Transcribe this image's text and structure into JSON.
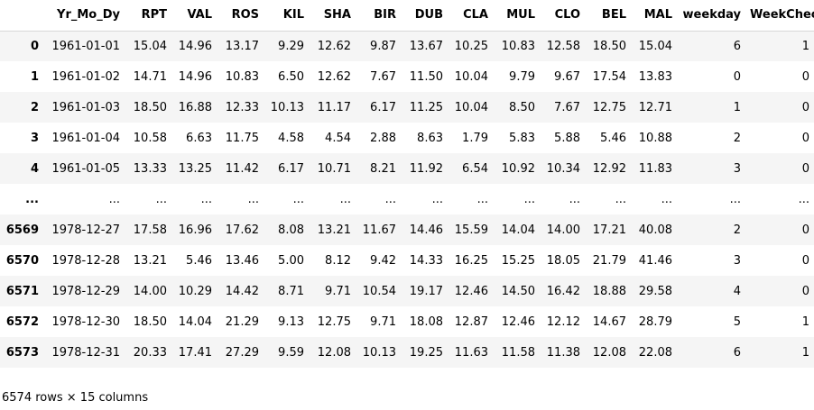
{
  "table": {
    "index_header": "",
    "columns": [
      "Yr_Mo_Dy",
      "RPT",
      "VAL",
      "ROS",
      "KIL",
      "SHA",
      "BIR",
      "DUB",
      "CLA",
      "MUL",
      "CLO",
      "BEL",
      "MAL",
      "weekday",
      "WeekCheck"
    ],
    "rows": [
      {
        "index": "0",
        "cells": [
          "1961-01-01",
          "15.04",
          "14.96",
          "13.17",
          "9.29",
          "12.62",
          "9.87",
          "13.67",
          "10.25",
          "10.83",
          "12.58",
          "18.50",
          "15.04",
          "6",
          "1"
        ]
      },
      {
        "index": "1",
        "cells": [
          "1961-01-02",
          "14.71",
          "14.96",
          "10.83",
          "6.50",
          "12.62",
          "7.67",
          "11.50",
          "10.04",
          "9.79",
          "9.67",
          "17.54",
          "13.83",
          "0",
          "0"
        ]
      },
      {
        "index": "2",
        "cells": [
          "1961-01-03",
          "18.50",
          "16.88",
          "12.33",
          "10.13",
          "11.17",
          "6.17",
          "11.25",
          "10.04",
          "8.50",
          "7.67",
          "12.75",
          "12.71",
          "1",
          "0"
        ]
      },
      {
        "index": "3",
        "cells": [
          "1961-01-04",
          "10.58",
          "6.63",
          "11.75",
          "4.58",
          "4.54",
          "2.88",
          "8.63",
          "1.79",
          "5.83",
          "5.88",
          "5.46",
          "10.88",
          "2",
          "0"
        ]
      },
      {
        "index": "4",
        "cells": [
          "1961-01-05",
          "13.33",
          "13.25",
          "11.42",
          "6.17",
          "10.71",
          "8.21",
          "11.92",
          "6.54",
          "10.92",
          "10.34",
          "12.92",
          "11.83",
          "3",
          "0"
        ]
      },
      {
        "index": "...",
        "cells": [
          "...",
          "...",
          "...",
          "...",
          "...",
          "...",
          "...",
          "...",
          "...",
          "...",
          "...",
          "...",
          "...",
          "...",
          "..."
        ]
      },
      {
        "index": "6569",
        "cells": [
          "1978-12-27",
          "17.58",
          "16.96",
          "17.62",
          "8.08",
          "13.21",
          "11.67",
          "14.46",
          "15.59",
          "14.04",
          "14.00",
          "17.21",
          "40.08",
          "2",
          "0"
        ]
      },
      {
        "index": "6570",
        "cells": [
          "1978-12-28",
          "13.21",
          "5.46",
          "13.46",
          "5.00",
          "8.12",
          "9.42",
          "14.33",
          "16.25",
          "15.25",
          "18.05",
          "21.79",
          "41.46",
          "3",
          "0"
        ]
      },
      {
        "index": "6571",
        "cells": [
          "1978-12-29",
          "14.00",
          "10.29",
          "14.42",
          "8.71",
          "9.71",
          "10.54",
          "19.17",
          "12.46",
          "14.50",
          "16.42",
          "18.88",
          "29.58",
          "4",
          "0"
        ]
      },
      {
        "index": "6572",
        "cells": [
          "1978-12-30",
          "18.50",
          "14.04",
          "21.29",
          "9.13",
          "12.75",
          "9.71",
          "18.08",
          "12.87",
          "12.46",
          "12.12",
          "14.67",
          "28.79",
          "5",
          "1"
        ]
      },
      {
        "index": "6573",
        "cells": [
          "1978-12-31",
          "20.33",
          "17.41",
          "27.29",
          "9.59",
          "12.08",
          "10.13",
          "19.25",
          "11.63",
          "11.58",
          "11.38",
          "12.08",
          "22.08",
          "6",
          "1"
        ]
      }
    ]
  },
  "summary": "6574 rows × 15 columns"
}
